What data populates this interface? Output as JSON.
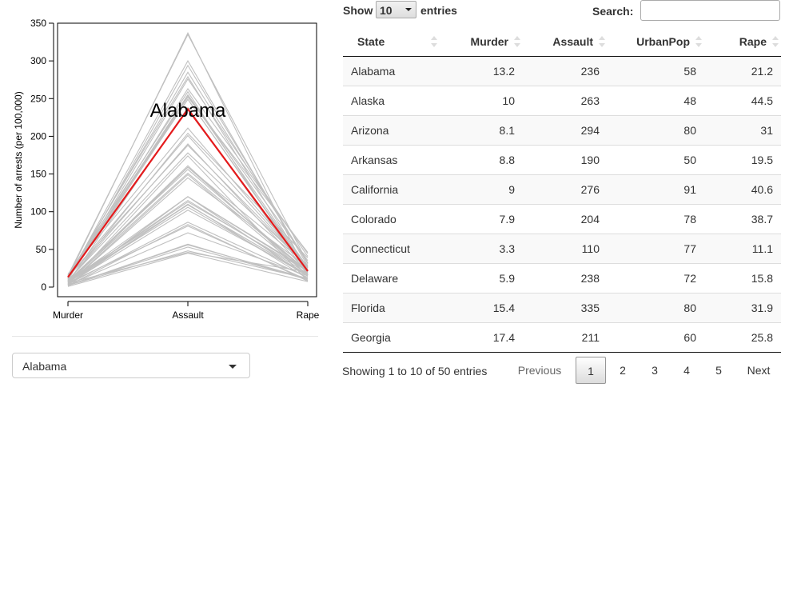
{
  "plot": {
    "y_axis_label": "Number of arrests (per 100,000)",
    "highlight_label": "Alabama",
    "highlight_color": "#e41a1c",
    "background_line_color": "#c0c0c0",
    "y_ticks": [
      "0",
      "50",
      "100",
      "150",
      "200",
      "250",
      "300",
      "350"
    ]
  },
  "chart_data": {
    "type": "line",
    "x": [
      "Murder",
      "Assault",
      "Rape"
    ],
    "ylim": [
      0,
      350
    ],
    "ylabel": "Number of arrests (per 100,000)",
    "xlabel": "",
    "grid": false,
    "highlight": {
      "name": "Alabama",
      "values": [
        13.2,
        236,
        21.2
      ]
    },
    "background_series": [
      [
        13.2,
        236,
        21.2
      ],
      [
        10,
        263,
        44.5
      ],
      [
        8.1,
        294,
        31
      ],
      [
        8.8,
        190,
        19.5
      ],
      [
        9,
        276,
        40.6
      ],
      [
        7.9,
        204,
        38.7
      ],
      [
        3.3,
        110,
        11.1
      ],
      [
        5.9,
        238,
        15.8
      ],
      [
        15.4,
        335,
        31.9
      ],
      [
        17.4,
        211,
        25.8
      ],
      [
        5.3,
        46,
        20.2
      ],
      [
        2.6,
        120,
        14.2
      ],
      [
        10.4,
        249,
        24
      ],
      [
        7.2,
        113,
        21
      ],
      [
        2.2,
        56,
        11.3
      ],
      [
        6,
        115,
        18
      ],
      [
        9.7,
        109,
        16.3
      ],
      [
        15.4,
        249,
        22.2
      ],
      [
        2.1,
        83,
        7.8
      ],
      [
        11.3,
        300,
        27.8
      ],
      [
        4.4,
        149,
        16.3
      ],
      [
        12.1,
        255,
        35.1
      ],
      [
        2.7,
        72,
        14.9
      ],
      [
        16.1,
        259,
        17.1
      ],
      [
        9,
        178,
        28.2
      ],
      [
        6,
        109,
        16.4
      ],
      [
        4.3,
        102,
        16.5
      ],
      [
        12.2,
        252,
        46
      ],
      [
        2.1,
        57,
        9.5
      ],
      [
        7.4,
        159,
        18.8
      ],
      [
        11.4,
        285,
        32.1
      ],
      [
        11.1,
        254,
        26.1
      ],
      [
        13,
        337,
        16.1
      ],
      [
        0.8,
        45,
        7.3
      ],
      [
        7.3,
        120,
        21.4
      ],
      [
        6.6,
        151,
        20
      ],
      [
        4.9,
        159,
        29.3
      ],
      [
        6.3,
        106,
        14.9
      ],
      [
        3.4,
        174,
        8.3
      ],
      [
        14.4,
        279,
        22.5
      ],
      [
        3.8,
        86,
        12.8
      ],
      [
        13.2,
        188,
        26.9
      ],
      [
        12.7,
        201,
        25.5
      ],
      [
        3.2,
        120,
        22.9
      ],
      [
        2.2,
        48,
        11.2
      ],
      [
        8.5,
        156,
        20.7
      ],
      [
        4,
        145,
        26.2
      ],
      [
        5.7,
        81,
        9.3
      ],
      [
        2.6,
        53,
        10.8
      ],
      [
        6.8,
        161,
        15.6
      ]
    ]
  },
  "state_select": {
    "value": "Alabama"
  },
  "table": {
    "length_prefix": "Show",
    "length_value": "10",
    "length_suffix": "entries",
    "search_label": "Search:",
    "search_value": "",
    "columns": [
      "State",
      "Murder",
      "Assault",
      "UrbanPop",
      "Rape"
    ],
    "rows": [
      [
        "Alabama",
        "13.2",
        "236",
        "58",
        "21.2"
      ],
      [
        "Alaska",
        "10",
        "263",
        "48",
        "44.5"
      ],
      [
        "Arizona",
        "8.1",
        "294",
        "80",
        "31"
      ],
      [
        "Arkansas",
        "8.8",
        "190",
        "50",
        "19.5"
      ],
      [
        "California",
        "9",
        "276",
        "91",
        "40.6"
      ],
      [
        "Colorado",
        "7.9",
        "204",
        "78",
        "38.7"
      ],
      [
        "Connecticut",
        "3.3",
        "110",
        "77",
        "11.1"
      ],
      [
        "Delaware",
        "5.9",
        "238",
        "72",
        "15.8"
      ],
      [
        "Florida",
        "15.4",
        "335",
        "80",
        "31.9"
      ],
      [
        "Georgia",
        "17.4",
        "211",
        "60",
        "25.8"
      ]
    ],
    "info": "Showing 1 to 10 of 50 entries",
    "pagination": {
      "previous": "Previous",
      "pages": [
        "1",
        "2",
        "3",
        "4",
        "5"
      ],
      "current": "1",
      "next": "Next"
    }
  }
}
